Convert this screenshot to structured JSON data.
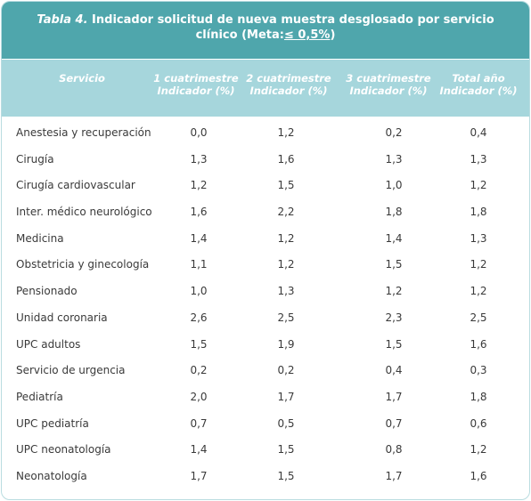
{
  "title": {
    "label": "Tabla 4.",
    "text_line1": " Indicador solicitud de nueva muestra desglosado por servicio",
    "text_line2_prefix": "clínico (Meta:",
    "goal": "≤ 0,5%",
    "text_line2_suffix": ")"
  },
  "columns": [
    {
      "line1": "Servicio",
      "line2": ""
    },
    {
      "line1": "1 cuatrimestre",
      "line2": "Indicador (%)"
    },
    {
      "line1": "2 cuatrimestre",
      "line2": "Indicador (%)"
    },
    {
      "line1": "3 cuatrimestre",
      "line2": "Indicador (%)"
    },
    {
      "line1": "Total año",
      "line2": "Indicador (%)"
    }
  ],
  "rows": [
    {
      "servicio": "Anestesia y recuperación",
      "c1": "0,0",
      "c2": "1,2",
      "c3": "0,2",
      "total": "0,4"
    },
    {
      "servicio": "Cirugía",
      "c1": "1,3",
      "c2": "1,6",
      "c3": "1,3",
      "total": "1,3"
    },
    {
      "servicio": "Cirugía cardiovascular",
      "c1": "1,2",
      "c2": "1,5",
      "c3": "1,0",
      "total": "1,2"
    },
    {
      "servicio": "Inter. médico neurológico",
      "c1": "1,6",
      "c2": "2,2",
      "c3": "1,8",
      "total": "1,8"
    },
    {
      "servicio": "Medicina",
      "c1": "1,4",
      "c2": "1,2",
      "c3": "1,4",
      "total": "1,3"
    },
    {
      "servicio": "Obstetricia y ginecología",
      "c1": "1,1",
      "c2": "1,2",
      "c3": "1,5",
      "total": "1,2"
    },
    {
      "servicio": "Pensionado",
      "c1": "1,0",
      "c2": "1,3",
      "c3": "1,2",
      "total": "1,2"
    },
    {
      "servicio": "Unidad coronaria",
      "c1": "2,6",
      "c2": "2,5",
      "c3": "2,3",
      "total": "2,5"
    },
    {
      "servicio": "UPC adultos",
      "c1": "1,5",
      "c2": "1,9",
      "c3": "1,5",
      "total": "1,6"
    },
    {
      "servicio": "Servicio de urgencia",
      "c1": "0,2",
      "c2": "0,2",
      "c3": "0,4",
      "total": "0,3"
    },
    {
      "servicio": "Pediatría",
      "c1": "2,0",
      "c2": "1,7",
      "c3": "1,7",
      "total": "1,8"
    },
    {
      "servicio": "UPC pediatría",
      "c1": "0,7",
      "c2": "0,5",
      "c3": "0,7",
      "total": "0,6"
    },
    {
      "servicio": "UPC neonatología",
      "c1": "1,4",
      "c2": "1,5",
      "c3": "0,8",
      "total": "1,2"
    },
    {
      "servicio": "Neonatología",
      "c1": "1,7",
      "c2": "1,5",
      "c3": "1,7",
      "total": "1,6"
    }
  ],
  "colors": {
    "title_bg": "#4fa6ac",
    "header_bg": "#a6d6dc",
    "border": "#b9dce0",
    "text": "#3a3a3a"
  }
}
